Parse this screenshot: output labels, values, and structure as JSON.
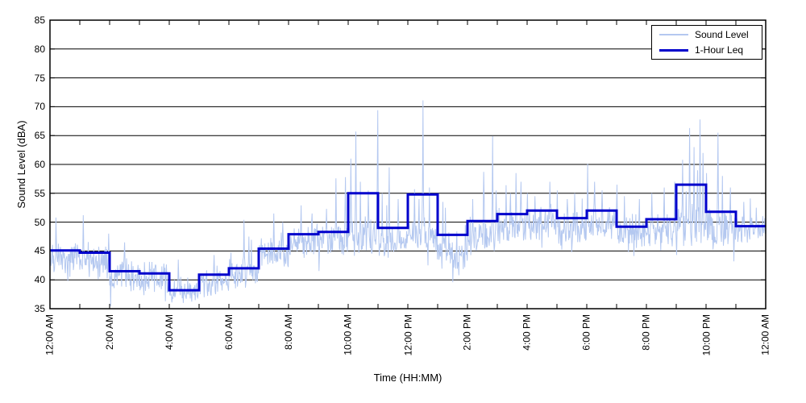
{
  "chart_data": {
    "type": "line",
    "title": "",
    "xlabel": "Time (HH:MM)",
    "ylabel": "Sound Level (dBA)",
    "ylim": [
      35,
      85
    ],
    "y_ticks": [
      35,
      40,
      45,
      50,
      55,
      60,
      65,
      70,
      75,
      80,
      85
    ],
    "x_hours_range": [
      0,
      24
    ],
    "x_tick_interval_hours": 1,
    "x_label_interval_hours": 2,
    "x_tick_labels": [
      "12:00 AM",
      "2:00 AM",
      "4:00 AM",
      "6:00 AM",
      "8:00 AM",
      "10:00 AM",
      "12:00 PM",
      "2:00 PM",
      "4:00 PM",
      "6:00 PM",
      "8:00 PM",
      "10:00 PM",
      "12:00 AM"
    ],
    "grid": {
      "horizontal": true,
      "vertical": false,
      "style": "solid",
      "color": "#000000"
    },
    "frame_color": "#000000",
    "background": "#ffffff",
    "legend": {
      "position": "top-right",
      "entries": [
        {
          "label": "Sound Level",
          "color": "#b4c8f0",
          "line_width": 1
        },
        {
          "label": "1-Hour Leq",
          "color": "#0000cc",
          "line_width": 3
        }
      ]
    },
    "series": [
      {
        "name": "1-Hour Leq",
        "type": "step-hourly",
        "color": "#0000cc",
        "values_dba": [
          45.1,
          44.7,
          41.5,
          41.1,
          38.2,
          40.9,
          42.0,
          45.4,
          47.9,
          48.3,
          55.0,
          49.0,
          54.8,
          47.8,
          50.2,
          51.4,
          52.0,
          50.7,
          52.0,
          49.2,
          50.5,
          56.5,
          51.8,
          49.3
        ]
      },
      {
        "name": "Sound Level",
        "type": "noisy-minute-trace",
        "color": "#b4c8f0",
        "hourly_base_dba": [
          43.8,
          43.4,
          40.9,
          40.2,
          37.8,
          39.7,
          41.4,
          44.3,
          46.7,
          46.9,
          47.3,
          46.8,
          47.3,
          44.5,
          47.6,
          49.3,
          49.9,
          49.1,
          49.8,
          47.7,
          48.7,
          49.3,
          48.3,
          48.8
        ],
        "hourly_spread_dba": [
          2.2,
          2.2,
          2.1,
          2.1,
          1.5,
          1.9,
          2.1,
          2.0,
          2.0,
          2.2,
          2.6,
          2.3,
          2.7,
          2.7,
          2.3,
          2.3,
          2.3,
          2.2,
          2.1,
          2.2,
          2.2,
          2.7,
          2.7,
          2.0
        ],
        "spikes_minute_dba": [
          [
            12,
            50.8
          ],
          [
            67,
            51.2
          ],
          [
            118,
            48.0
          ],
          [
            150,
            46.5
          ],
          [
            258,
            43.5
          ],
          [
            330,
            44.3
          ],
          [
            390,
            50.4
          ],
          [
            400,
            47.5
          ],
          [
            450,
            51.5
          ],
          [
            468,
            50.0
          ],
          [
            505,
            52.9
          ],
          [
            527,
            51.5
          ],
          [
            556,
            52.3
          ],
          [
            575,
            57.6
          ],
          [
            594,
            57.8
          ],
          [
            605,
            61.0
          ],
          [
            615,
            65.7
          ],
          [
            624,
            57.0
          ],
          [
            640,
            55.5
          ],
          [
            659,
            69.4
          ],
          [
            668,
            55.0
          ],
          [
            682,
            59.5
          ],
          [
            700,
            54.0
          ],
          [
            733,
            55.7
          ],
          [
            742,
            54.0
          ],
          [
            750,
            71.1
          ],
          [
            763,
            56.0
          ],
          [
            790,
            53.5
          ],
          [
            795,
            52.5
          ],
          [
            850,
            54.0
          ],
          [
            872,
            58.7
          ],
          [
            890,
            64.9
          ],
          [
            897,
            55.5
          ],
          [
            917,
            56.4
          ],
          [
            926,
            55.0
          ],
          [
            937,
            58.5
          ],
          [
            947,
            57.0
          ],
          [
            960,
            55.0
          ],
          [
            975,
            54.5
          ],
          [
            1005,
            57.0
          ],
          [
            1020,
            55.5
          ],
          [
            1040,
            54.0
          ],
          [
            1055,
            55.0
          ],
          [
            1081,
            60.1
          ],
          [
            1095,
            57.0
          ],
          [
            1110,
            55.5
          ],
          [
            1140,
            56.5
          ],
          [
            1155,
            54.5
          ],
          [
            1185,
            54.0
          ],
          [
            1210,
            55.0
          ],
          [
            1235,
            56.0
          ],
          [
            1256,
            57.0
          ],
          [
            1272,
            60.8
          ],
          [
            1286,
            66.3
          ],
          [
            1295,
            63.0
          ],
          [
            1302,
            59.0
          ],
          [
            1307,
            67.8
          ],
          [
            1313,
            62.0
          ],
          [
            1320,
            58.5
          ],
          [
            1343,
            65.5
          ],
          [
            1352,
            58.0
          ],
          [
            1368,
            56.0
          ],
          [
            1395,
            53.5
          ],
          [
            1420,
            52.5
          ]
        ],
        "dips_minute_dba": [
          [
            100,
            40.5
          ],
          [
            188,
            38.5
          ],
          [
            232,
            36.3
          ],
          [
            268,
            36.0
          ],
          [
            292,
            36.5
          ],
          [
            310,
            37.0
          ],
          [
            760,
            42.5
          ],
          [
            810,
            39.6
          ],
          [
            822,
            40.8
          ],
          [
            1163,
            44.8
          ],
          [
            1375,
            43.2
          ]
        ]
      }
    ]
  }
}
